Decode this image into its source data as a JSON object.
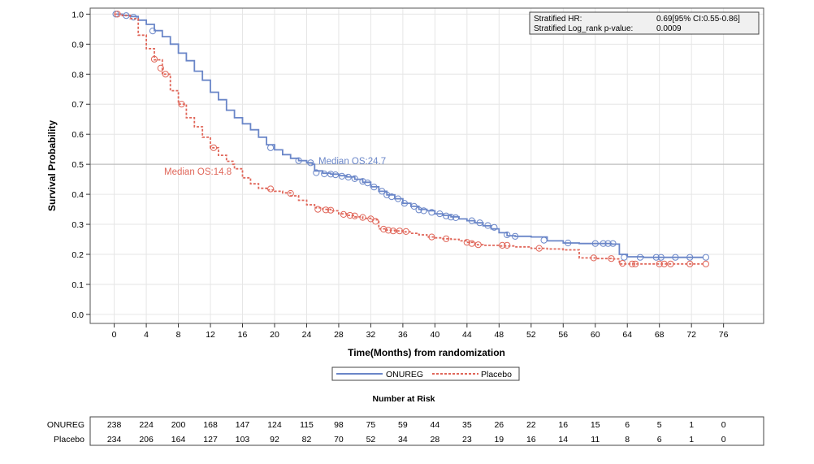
{
  "chart_data": {
    "type": "line",
    "subtype": "kaplan-meier",
    "xlabel": "Time(Months) from randomization",
    "ylabel": "Survival Probability",
    "xlim": [
      -3,
      81
    ],
    "ylim": [
      -0.03,
      1.02
    ],
    "x_ticks": [
      0,
      4,
      8,
      12,
      16,
      20,
      24,
      28,
      32,
      36,
      40,
      44,
      48,
      52,
      56,
      60,
      64,
      68,
      72,
      76
    ],
    "y_ticks": [
      0.0,
      0.1,
      0.2,
      0.3,
      0.4,
      0.5,
      0.6,
      0.7,
      0.8,
      0.9,
      1.0
    ],
    "y_tick_labels": [
      "0.0",
      "0.1",
      "0.2",
      "0.3",
      "0.4",
      "0.5",
      "0.6",
      "0.7",
      "0.8",
      "0.9",
      "1.0"
    ],
    "grid": true,
    "reference_line_y": 0.5,
    "stats_box": {
      "row1_label": "Stratified HR:",
      "row1_value": "0.69[95% CI:0.55-0.86]",
      "row2_label": "Stratified Log_rank p-value:",
      "row2_value": "0.0009"
    },
    "series": [
      {
        "name": "ONUREG",
        "color": "#6a86c8",
        "dash": "solid",
        "median_label": "Median OS:24.7",
        "points": [
          [
            0,
            1.0
          ],
          [
            1,
            0.996
          ],
          [
            2,
            0.992
          ],
          [
            3,
            0.98
          ],
          [
            4,
            0.966
          ],
          [
            5,
            0.945
          ],
          [
            6,
            0.925
          ],
          [
            7,
            0.9
          ],
          [
            8,
            0.87
          ],
          [
            9,
            0.845
          ],
          [
            10,
            0.81
          ],
          [
            11,
            0.78
          ],
          [
            12,
            0.74
          ],
          [
            13,
            0.715
          ],
          [
            14,
            0.68
          ],
          [
            15,
            0.655
          ],
          [
            16,
            0.635
          ],
          [
            17,
            0.615
          ],
          [
            18,
            0.59
          ],
          [
            19,
            0.565
          ],
          [
            20,
            0.548
          ],
          [
            21,
            0.532
          ],
          [
            22,
            0.52
          ],
          [
            23,
            0.512
          ],
          [
            24,
            0.505
          ],
          [
            24.7,
            0.5
          ],
          [
            25,
            0.478
          ],
          [
            26,
            0.47
          ],
          [
            27,
            0.467
          ],
          [
            28,
            0.462
          ],
          [
            29,
            0.458
          ],
          [
            30,
            0.45
          ],
          [
            31,
            0.44
          ],
          [
            32,
            0.425
          ],
          [
            33,
            0.41
          ],
          [
            34,
            0.398
          ],
          [
            35,
            0.385
          ],
          [
            36,
            0.37
          ],
          [
            37,
            0.36
          ],
          [
            38,
            0.35
          ],
          [
            39,
            0.345
          ],
          [
            40,
            0.335
          ],
          [
            41,
            0.33
          ],
          [
            42,
            0.325
          ],
          [
            43,
            0.318
          ],
          [
            44,
            0.312
          ],
          [
            45,
            0.305
          ],
          [
            46,
            0.295
          ],
          [
            47,
            0.285
          ],
          [
            48,
            0.272
          ],
          [
            49,
            0.262
          ],
          [
            50,
            0.26
          ],
          [
            52,
            0.258
          ],
          [
            54,
            0.245
          ],
          [
            56,
            0.238
          ],
          [
            58,
            0.236
          ],
          [
            60,
            0.236
          ],
          [
            62,
            0.234
          ],
          [
            63,
            0.2
          ],
          [
            64,
            0.192
          ],
          [
            66,
            0.19
          ],
          [
            68,
            0.19
          ],
          [
            70,
            0.19
          ],
          [
            73.5,
            0.19
          ]
        ],
        "censor_marks": [
          [
            0.2,
            1.0
          ],
          [
            1.5,
            0.995
          ],
          [
            2.4,
            0.99
          ],
          [
            4.8,
            0.944
          ],
          [
            19.5,
            0.555
          ],
          [
            23,
            0.512
          ],
          [
            24.5,
            0.505
          ],
          [
            25.2,
            0.472
          ],
          [
            26.2,
            0.468
          ],
          [
            27,
            0.467
          ],
          [
            27.6,
            0.465
          ],
          [
            28.4,
            0.46
          ],
          [
            29.2,
            0.457
          ],
          [
            30,
            0.452
          ],
          [
            31,
            0.443
          ],
          [
            31.6,
            0.438
          ],
          [
            32.4,
            0.424
          ],
          [
            33.4,
            0.41
          ],
          [
            34,
            0.398
          ],
          [
            34.6,
            0.392
          ],
          [
            35.4,
            0.385
          ],
          [
            36.2,
            0.37
          ],
          [
            37.4,
            0.36
          ],
          [
            38,
            0.348
          ],
          [
            38.6,
            0.345
          ],
          [
            39.6,
            0.34
          ],
          [
            40.6,
            0.335
          ],
          [
            41.4,
            0.328
          ],
          [
            42,
            0.324
          ],
          [
            42.6,
            0.322
          ],
          [
            44.6,
            0.312
          ],
          [
            45.6,
            0.305
          ],
          [
            46.6,
            0.296
          ],
          [
            47.4,
            0.29
          ],
          [
            49,
            0.265
          ],
          [
            50,
            0.26
          ],
          [
            53.6,
            0.247
          ],
          [
            56.6,
            0.238
          ],
          [
            60,
            0.236
          ],
          [
            61,
            0.236
          ],
          [
            61.6,
            0.236
          ],
          [
            62.2,
            0.236
          ],
          [
            63.6,
            0.19
          ],
          [
            65.6,
            0.19
          ],
          [
            67.6,
            0.19
          ],
          [
            68.2,
            0.19
          ],
          [
            70,
            0.19
          ],
          [
            71.8,
            0.19
          ],
          [
            73.8,
            0.19
          ]
        ]
      },
      {
        "name": "Placebo",
        "color": "#e0675a",
        "dash": "dashed",
        "median_label": "Median OS:14.8",
        "points": [
          [
            0,
            1.0
          ],
          [
            1,
            0.995
          ],
          [
            2,
            0.985
          ],
          [
            3,
            0.93
          ],
          [
            4,
            0.885
          ],
          [
            5,
            0.848
          ],
          [
            6,
            0.8
          ],
          [
            7,
            0.745
          ],
          [
            8,
            0.7
          ],
          [
            9,
            0.655
          ],
          [
            10,
            0.625
          ],
          [
            11,
            0.59
          ],
          [
            12,
            0.555
          ],
          [
            13,
            0.53
          ],
          [
            14,
            0.51
          ],
          [
            14.8,
            0.5
          ],
          [
            15,
            0.485
          ],
          [
            16,
            0.455
          ],
          [
            17,
            0.435
          ],
          [
            18,
            0.42
          ],
          [
            19,
            0.415
          ],
          [
            20,
            0.41
          ],
          [
            21,
            0.405
          ],
          [
            22,
            0.395
          ],
          [
            23,
            0.38
          ],
          [
            24,
            0.365
          ],
          [
            25,
            0.355
          ],
          [
            26,
            0.35
          ],
          [
            27,
            0.345
          ],
          [
            28,
            0.335
          ],
          [
            29,
            0.33
          ],
          [
            30,
            0.325
          ],
          [
            31,
            0.32
          ],
          [
            32,
            0.315
          ],
          [
            33,
            0.285
          ],
          [
            34,
            0.28
          ],
          [
            35,
            0.278
          ],
          [
            36,
            0.275
          ],
          [
            37,
            0.27
          ],
          [
            38,
            0.265
          ],
          [
            39,
            0.258
          ],
          [
            40,
            0.255
          ],
          [
            41,
            0.252
          ],
          [
            42,
            0.25
          ],
          [
            43,
            0.245
          ],
          [
            44,
            0.24
          ],
          [
            45,
            0.232
          ],
          [
            46,
            0.23
          ],
          [
            48,
            0.228
          ],
          [
            50,
            0.225
          ],
          [
            52,
            0.22
          ],
          [
            54,
            0.218
          ],
          [
            56,
            0.215
          ],
          [
            58,
            0.188
          ],
          [
            60,
            0.186
          ],
          [
            62,
            0.185
          ],
          [
            63,
            0.168
          ],
          [
            64,
            0.168
          ],
          [
            66,
            0.168
          ],
          [
            68,
            0.168
          ],
          [
            73.5,
            0.168
          ]
        ],
        "censor_marks": [
          [
            0.4,
            1.0
          ],
          [
            5,
            0.85
          ],
          [
            5.8,
            0.82
          ],
          [
            6.4,
            0.8
          ],
          [
            8.4,
            0.7
          ],
          [
            12.4,
            0.555
          ],
          [
            19.5,
            0.418
          ],
          [
            22,
            0.403
          ],
          [
            25.4,
            0.35
          ],
          [
            26.4,
            0.348
          ],
          [
            27,
            0.347
          ],
          [
            28.6,
            0.333
          ],
          [
            29.4,
            0.33
          ],
          [
            30,
            0.328
          ],
          [
            31,
            0.323
          ],
          [
            32,
            0.318
          ],
          [
            32.6,
            0.31
          ],
          [
            33.6,
            0.284
          ],
          [
            34.2,
            0.28
          ],
          [
            34.8,
            0.278
          ],
          [
            35.6,
            0.278
          ],
          [
            36.4,
            0.276
          ],
          [
            39.6,
            0.258
          ],
          [
            41.4,
            0.252
          ],
          [
            44,
            0.24
          ],
          [
            44.6,
            0.236
          ],
          [
            45.4,
            0.232
          ],
          [
            48.4,
            0.23
          ],
          [
            49,
            0.23
          ],
          [
            53,
            0.22
          ],
          [
            59.8,
            0.188
          ],
          [
            62,
            0.186
          ],
          [
            63.4,
            0.17
          ],
          [
            64.6,
            0.168
          ],
          [
            65,
            0.168
          ],
          [
            68,
            0.168
          ],
          [
            68.6,
            0.168
          ],
          [
            69.4,
            0.168
          ],
          [
            71.8,
            0.168
          ],
          [
            73.8,
            0.168
          ]
        ]
      }
    ]
  },
  "legend": {
    "items": [
      "ONUREG",
      "Placebo"
    ]
  },
  "risk_table": {
    "title": "Number at Risk",
    "rows": [
      {
        "label": "ONUREG",
        "values": [
          "238",
          "224",
          "200",
          "168",
          "147",
          "124",
          "115",
          "98",
          "75",
          "59",
          "44",
          "35",
          "26",
          "22",
          "16",
          "15",
          "6",
          "5",
          "1",
          "0"
        ]
      },
      {
        "label": "Placebo",
        "values": [
          "234",
          "206",
          "164",
          "127",
          "103",
          "92",
          "82",
          "70",
          "52",
          "34",
          "28",
          "23",
          "19",
          "16",
          "14",
          "11",
          "8",
          "6",
          "1",
          "0"
        ]
      }
    ]
  }
}
